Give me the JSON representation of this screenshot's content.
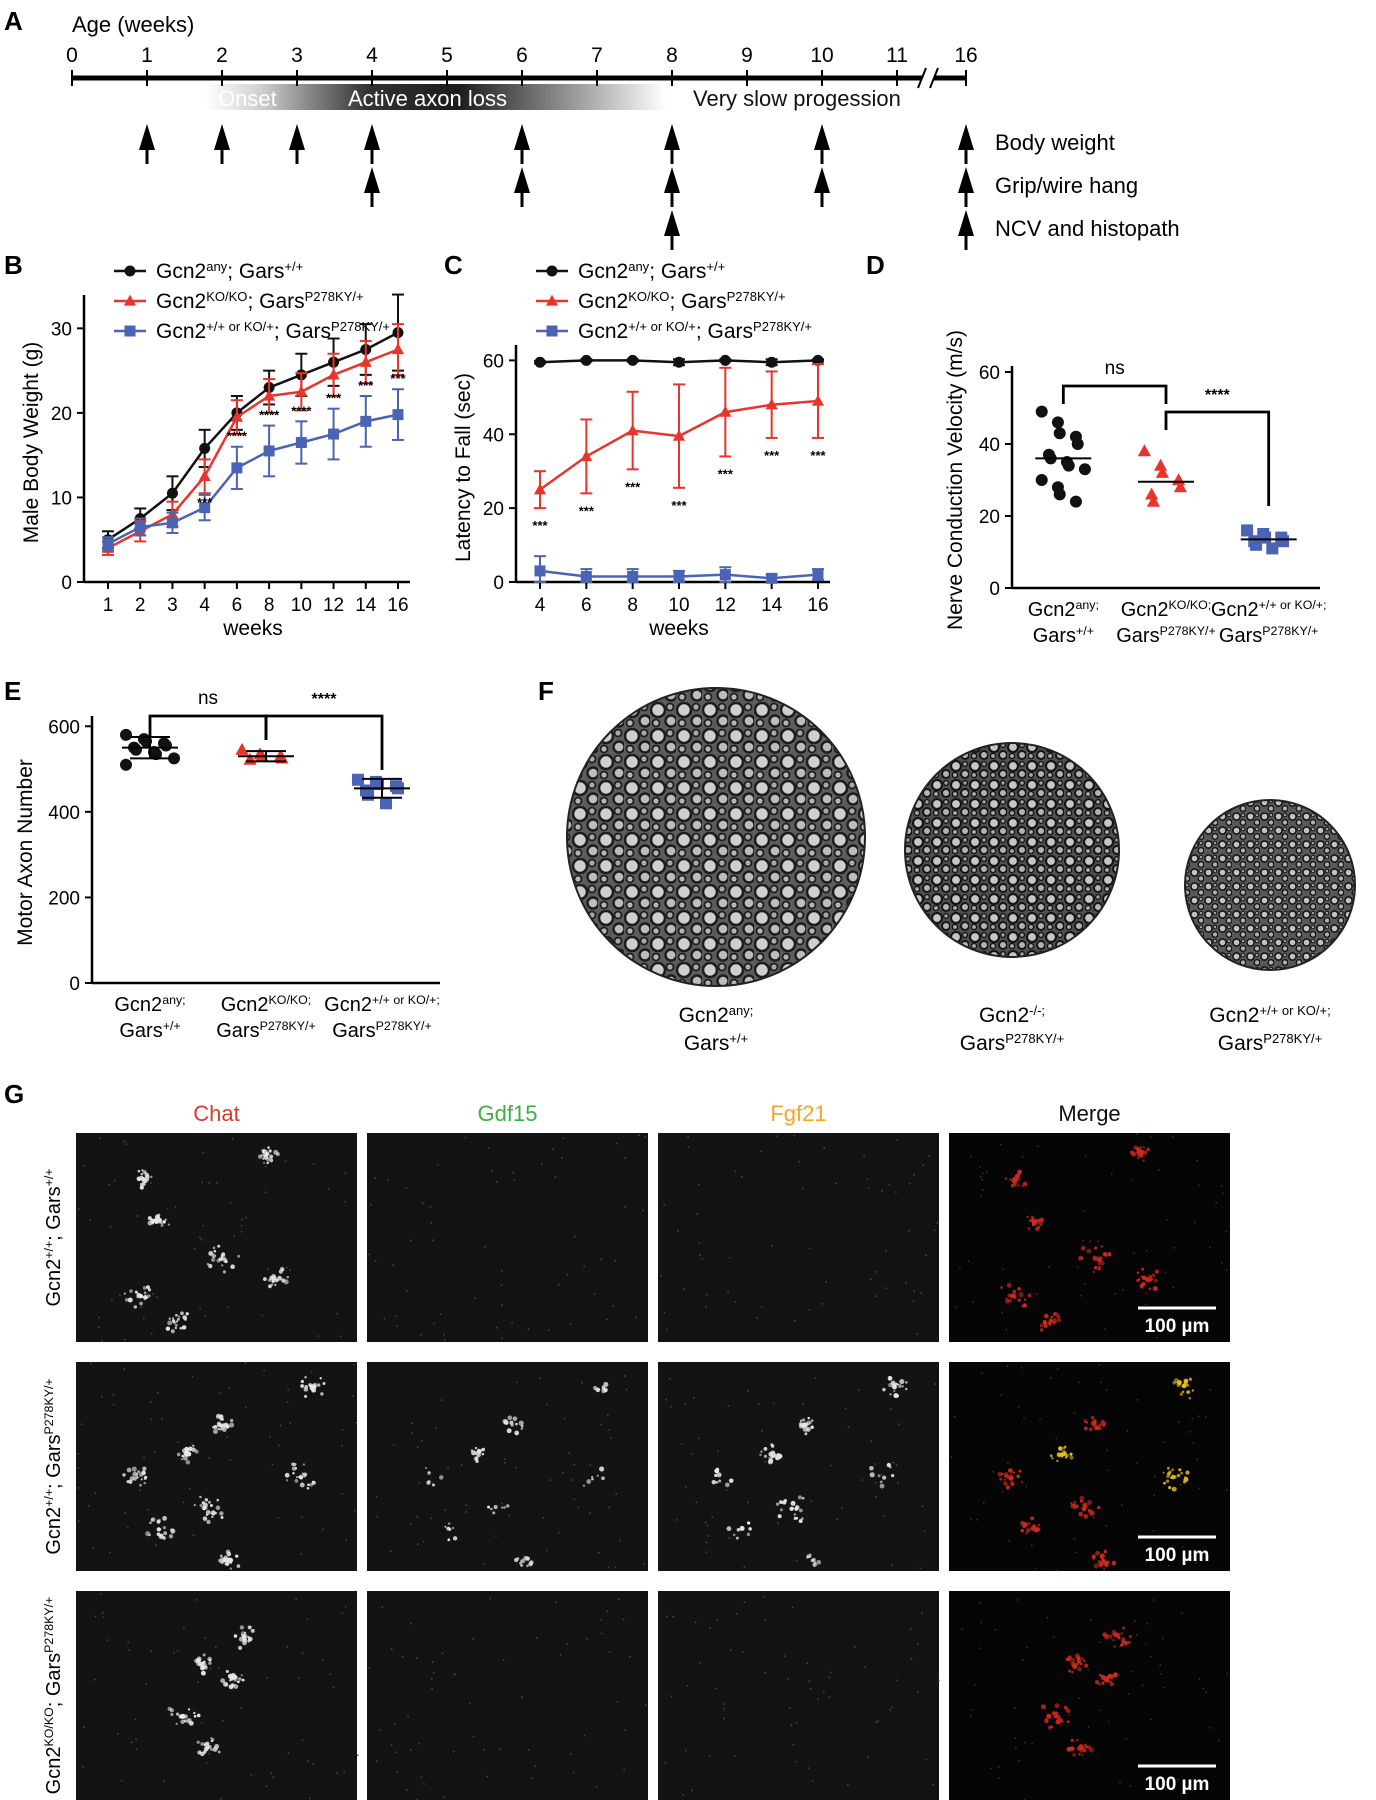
{
  "panels": {
    "A": "A",
    "B": "B",
    "C": "C",
    "D": "D",
    "E": "E",
    "F": "F",
    "G": "G"
  },
  "timeline": {
    "axis_title": "Age (weeks)",
    "ticks": [
      "0",
      "1",
      "2",
      "3",
      "4",
      "5",
      "6",
      "7",
      "8",
      "9",
      "10",
      "11",
      "16"
    ],
    "phase_onset": "Onset",
    "phase_active": "Active axon loss",
    "phase_slow": "Very slow progession",
    "row_labels": [
      "Body weight",
      "Grip/wire hang",
      "NCV and histopath"
    ],
    "arrows_body_weight": [
      "1",
      "2",
      "3",
      "4",
      "6",
      "8",
      "10",
      "16"
    ],
    "arrows_grip": [
      "4",
      "6",
      "8",
      "10",
      "16"
    ],
    "arrows_ncv": [
      "8",
      "16"
    ]
  },
  "legend": {
    "wt": {
      "base": "Gcn2",
      "sup1": "any",
      "mid": "; Gars",
      "sup2": "+/+"
    },
    "ko": {
      "base": "Gcn2",
      "sup1": "KO/KO",
      "mid": "; Gars",
      "sup2": "P278KY/+"
    },
    "het": {
      "base": "Gcn2",
      "sup1": "+/+ or KO/+",
      "mid": "; Gars",
      "sup2": "P278KY/+"
    }
  },
  "colors": {
    "wt": "#111111",
    "ko": "#e8352c",
    "het": "#4a63b5"
  },
  "chart_data": [
    {
      "id": "B",
      "type": "line",
      "ylabel": "Male Body Weight (g)",
      "xlabel": "weeks",
      "categories": [
        "1",
        "2",
        "3",
        "4",
        "6",
        "8",
        "10",
        "12",
        "14",
        "16"
      ],
      "ylim": [
        0,
        33
      ],
      "yticks": [
        0,
        10,
        20,
        30
      ],
      "series": [
        {
          "key": "wt",
          "values": [
            5,
            7.5,
            10.5,
            15.8,
            20,
            23,
            24.5,
            26,
            27.5,
            29.5
          ],
          "err": [
            1,
            1.2,
            2,
            2.2,
            2,
            2,
            2.5,
            2.8,
            3,
            4.5
          ]
        },
        {
          "key": "ko",
          "values": [
            4,
            6,
            8,
            12.5,
            19.5,
            22,
            22.5,
            24.5,
            26,
            27.5
          ],
          "err": [
            0.8,
            1.2,
            1.5,
            2,
            2,
            2,
            2.2,
            2.5,
            2.5,
            3
          ]
        },
        {
          "key": "het",
          "values": [
            4.5,
            6.5,
            7,
            8.8,
            13.5,
            15.5,
            16.5,
            17.5,
            19,
            19.8
          ],
          "err": [
            0.8,
            1,
            1.2,
            1.5,
            2.5,
            3,
            2.5,
            3,
            3,
            3
          ]
        }
      ],
      "stars": [
        "",
        "",
        "",
        "***",
        "****",
        "****",
        "****",
        "***",
        "***",
        "***"
      ]
    },
    {
      "id": "C",
      "type": "line",
      "ylabel": "Latency to Fall (sec)",
      "xlabel": "weeks",
      "categories": [
        "4",
        "6",
        "8",
        "10",
        "12",
        "14",
        "16"
      ],
      "ylim": [
        0,
        62
      ],
      "yticks": [
        0,
        20,
        40,
        60
      ],
      "series": [
        {
          "key": "wt",
          "values": [
            59.5,
            60,
            60,
            59.5,
            60,
            59.5,
            60
          ],
          "err": [
            0.3,
            0.3,
            0.3,
            0.8,
            0.3,
            0.8,
            0.3
          ]
        },
        {
          "key": "ko",
          "values": [
            25,
            34,
            41,
            39.5,
            46,
            48,
            49
          ],
          "err": [
            5,
            10,
            10.5,
            14,
            12,
            9,
            10
          ]
        },
        {
          "key": "het",
          "values": [
            3,
            1.5,
            1.5,
            1.5,
            2,
            1,
            2
          ],
          "err": [
            4,
            2,
            2,
            1.5,
            2,
            1,
            1.5
          ]
        }
      ],
      "stars": [
        "***",
        "***",
        "***",
        "***",
        "***",
        "***",
        "***"
      ]
    },
    {
      "id": "D",
      "type": "scatter",
      "ylabel": "Nerve Conduction Velocity (m/s)",
      "ylim": [
        0,
        60
      ],
      "yticks": [
        0,
        20,
        40,
        60
      ],
      "groups": [
        {
          "key": "wt",
          "l1": {
            "base": "Gcn2",
            "sup": "any;"
          },
          "l2": {
            "base": "Gars",
            "sup": "+/+"
          },
          "points": [
            49,
            46,
            43,
            42,
            40,
            37,
            36,
            35,
            34,
            33,
            30,
            28,
            26,
            24
          ],
          "mean": 36
        },
        {
          "key": "ko",
          "l1": {
            "base": "Gcn2",
            "sup": "KO/KO;"
          },
          "l2": {
            "base": "Gars",
            "sup": "P278KY/+"
          },
          "points": [
            38,
            34,
            32,
            30,
            28,
            26,
            24
          ],
          "mean": 29.5
        },
        {
          "key": "het",
          "l1": {
            "base": "Gcn2",
            "sup": "+/+ or KO/+;"
          },
          "l2": {
            "base": "Gars",
            "sup": "P278KY/+"
          },
          "points": [
            16,
            15,
            14,
            14,
            13,
            13,
            12,
            11
          ],
          "mean": 13.5
        }
      ],
      "comparisons": [
        {
          "from": 0,
          "to": 1,
          "label": "ns"
        },
        {
          "from": 1,
          "to": 2,
          "label": "****"
        }
      ]
    },
    {
      "id": "E",
      "type": "scatter",
      "ylabel": "Motor Axon Number",
      "ylim": [
        0,
        610
      ],
      "yticks": [
        0,
        200,
        400,
        600
      ],
      "groups": [
        {
          "key": "wt",
          "l1": {
            "base": "Gcn2",
            "sup": "any;"
          },
          "l2": {
            "base": "Gars",
            "sup": "+/+"
          },
          "points": [
            580,
            570,
            565,
            560,
            555,
            550,
            545,
            540,
            535,
            525,
            510
          ],
          "mean": 550,
          "sd": 25
        },
        {
          "key": "ko",
          "l1": {
            "base": "Gcn2",
            "sup": "KO/KO;"
          },
          "l2": {
            "base": "Gars",
            "sup": "P278KY/+"
          },
          "points": [
            545,
            535,
            530,
            528,
            525,
            522
          ],
          "mean": 530,
          "sd": 12
        },
        {
          "key": "het",
          "l1": {
            "base": "Gcn2",
            "sup": "+/+ or KO/+;"
          },
          "l2": {
            "base": "Gars",
            "sup": "P278KY/+"
          },
          "points": [
            475,
            470,
            465,
            460,
            455,
            450,
            440,
            420
          ],
          "mean": 455,
          "sd": 22
        }
      ],
      "comparisons": [
        {
          "from": 0,
          "to": 1,
          "label": "ns"
        },
        {
          "from": 1,
          "to": 2,
          "label": "****"
        }
      ]
    }
  ],
  "panel_f": {
    "labels": [
      {
        "l1": {
          "base": "Gcn2",
          "sup": "any;"
        },
        "l2": {
          "base": "Gars",
          "sup": "+/+"
        }
      },
      {
        "l1": {
          "base": "Gcn2",
          "sup": "-/-;"
        },
        "l2": {
          "base": "Gars",
          "sup": "P278KY/+"
        }
      },
      {
        "l1": {
          "base": "Gcn2",
          "sup": "+/+ or KO/+;"
        },
        "l2": {
          "base": "Gars",
          "sup": "P278KY/+"
        }
      }
    ]
  },
  "panel_g": {
    "columns": [
      {
        "label": "Chat",
        "color": "#d93a2b"
      },
      {
        "label": "Gdf15",
        "color": "#3cb043"
      },
      {
        "label": "Fgf21",
        "color": "#f5a623"
      },
      {
        "label": "Merge",
        "color": "#111111"
      }
    ],
    "rows": [
      {
        "base": "Gcn2",
        "sup1": "+/+",
        "mid": "; Gars",
        "sup2": "+/+"
      },
      {
        "base": "Gcn2",
        "sup1": "+/+",
        "mid": "; Gars",
        "sup2": "P278KY/+"
      },
      {
        "base": "Gcn2",
        "sup1": "KO/KO",
        "mid": "; Gars",
        "sup2": "P278KY/+"
      }
    ],
    "scalebar": "100 µm"
  }
}
